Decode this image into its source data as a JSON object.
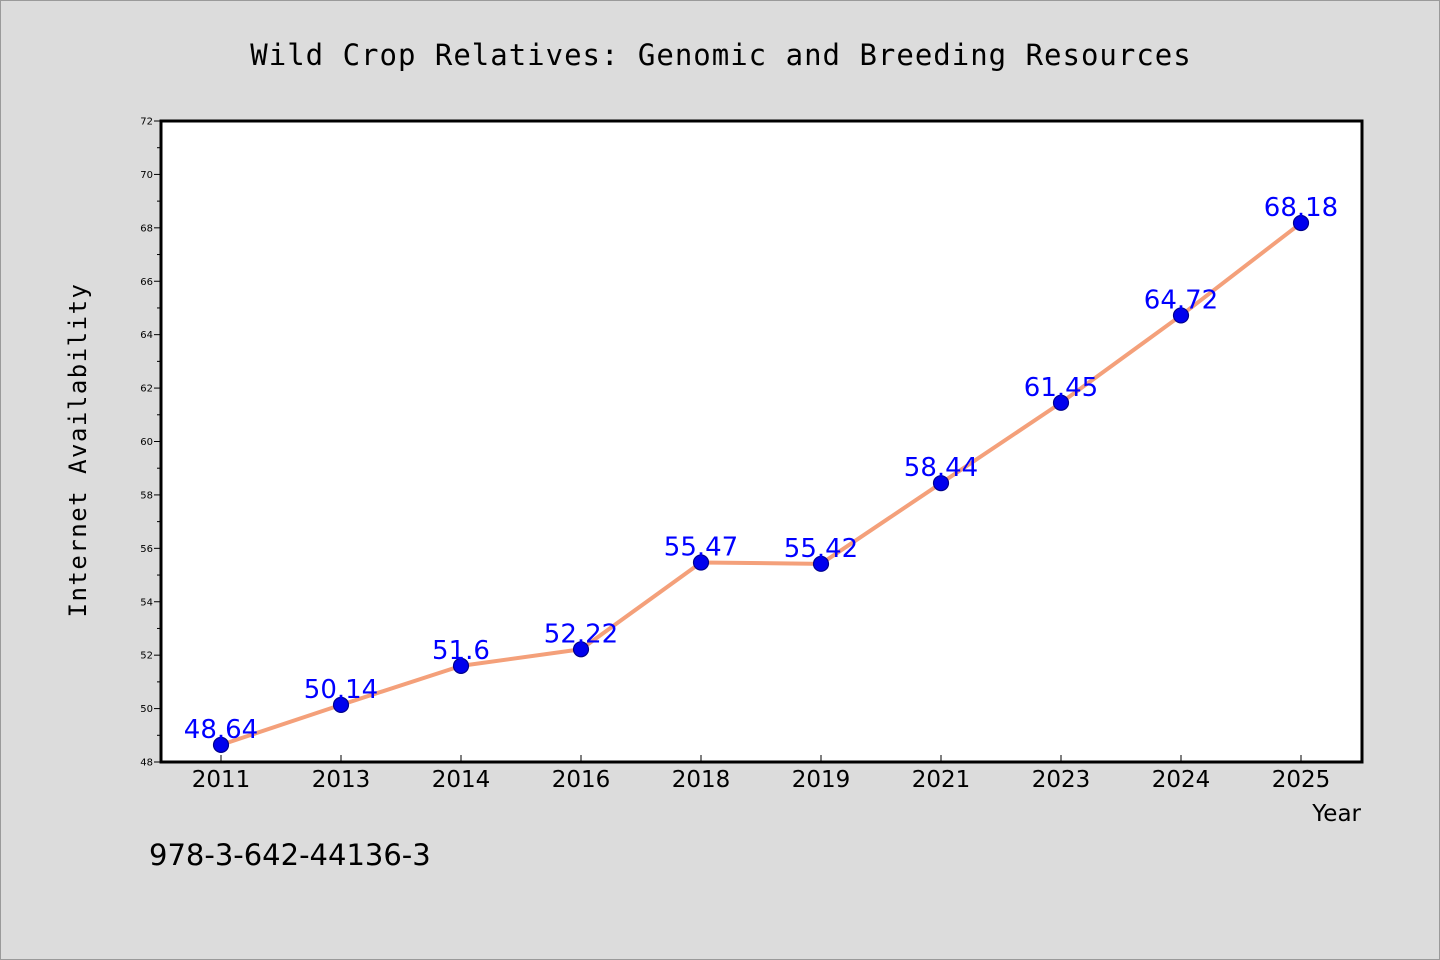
{
  "chart_data": {
    "type": "line",
    "title": "Wild Crop Relatives: Genomic and Breeding Resources",
    "xlabel": "Year",
    "ylabel": "Internet Availability",
    "categories": [
      "2011",
      "2013",
      "2014",
      "2016",
      "2018",
      "2019",
      "2021",
      "2023",
      "2024",
      "2025"
    ],
    "series": [
      {
        "values": [
          48.64,
          50.14,
          51.6,
          52.22,
          55.47,
          55.42,
          58.44,
          61.45,
          64.72,
          68.18
        ],
        "labels": [
          "48.64",
          "50.14",
          "51.6",
          "52.22",
          "55.47",
          "55.42",
          "58.44",
          "61.45",
          "64.72",
          "68.18"
        ]
      }
    ],
    "ylim": [
      48,
      72
    ],
    "yticks": [
      "48",
      "50",
      "52",
      "54",
      "56",
      "58",
      "60",
      "62",
      "64",
      "66",
      "68",
      "70",
      "72"
    ],
    "grid": false,
    "legend": "none",
    "colors": {
      "line": "#f4a07a",
      "marker": "#0000ee",
      "marker_edge": "#00008b",
      "data_label": "#0000ff",
      "background": "#dcdcdc",
      "plot_background": "#ffffff"
    }
  },
  "footer": {
    "isbn": "978-3-642-44136-3"
  }
}
